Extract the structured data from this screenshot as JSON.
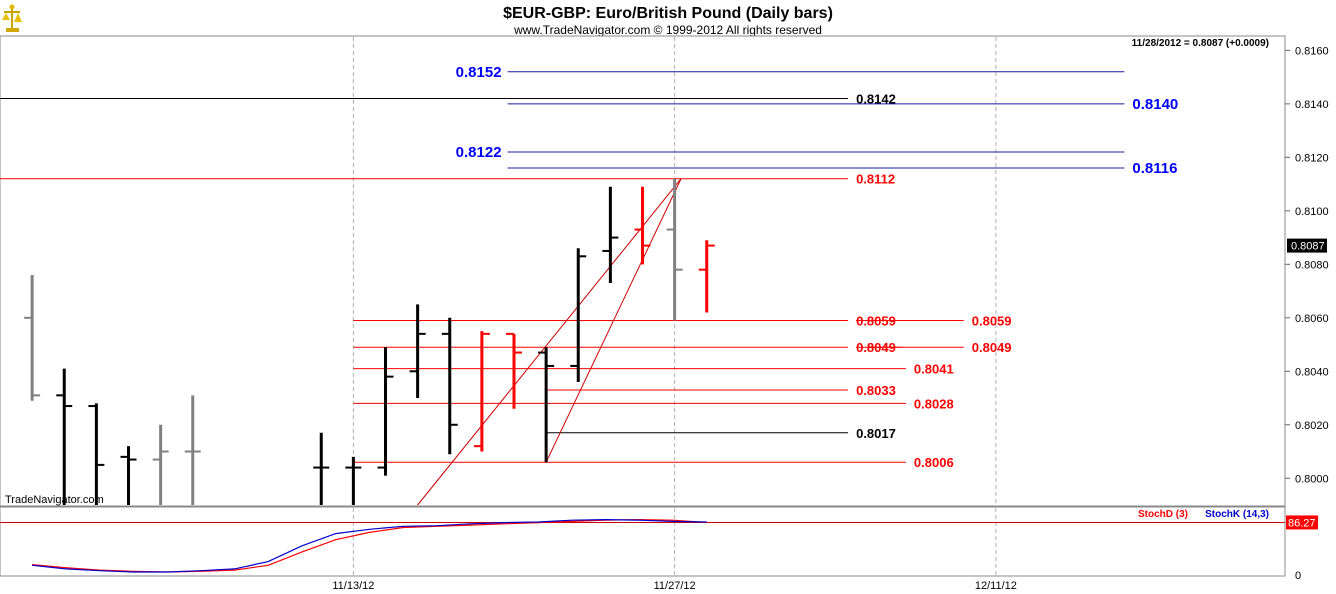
{
  "header": {
    "title": "$EUR-GBP:  Euro/British Pound  (Daily bars)",
    "subtitle": "www.TradeNavigator.com © 1999-2012 All rights reserved",
    "logo_icon": "scales-logo-icon"
  },
  "chart_data": [
    {
      "type": "ohlc",
      "symbol": "$EUR-GBP",
      "watermark": "TradeNavigator.com",
      "readout": "11/28/2012 = 0.8087 (+0.0009)",
      "last_price_label": "0.8087",
      "ylim": [
        0.799,
        0.8165
      ],
      "y_ticks": [
        "0.8160",
        "0.8140",
        "0.8120",
        "0.8100",
        "0.8080",
        "0.8060",
        "0.8040",
        "0.8020",
        "0.8000"
      ],
      "x_ticks": [
        {
          "label": "11/13/12",
          "index": 10
        },
        {
          "label": "11/27/12",
          "index": 20
        },
        {
          "label": "12/11/12",
          "index": 30
        }
      ],
      "x_range": [
        -1,
        39
      ],
      "bars": [
        {
          "i": 0,
          "o": 0.806,
          "h": 0.8076,
          "l": 0.8029,
          "c": 0.8031,
          "color": "#808080"
        },
        {
          "i": 1,
          "o": 0.8031,
          "h": 0.8041,
          "l": 0.799,
          "c": 0.8027,
          "color": "#000000"
        },
        {
          "i": 2,
          "o": 0.8027,
          "h": 0.8028,
          "l": 0.799,
          "c": 0.8005,
          "color": "#000000"
        },
        {
          "i": 3,
          "o": 0.8008,
          "h": 0.8012,
          "l": 0.799,
          "c": 0.8007,
          "color": "#000000"
        },
        {
          "i": 4,
          "o": 0.8007,
          "h": 0.802,
          "l": 0.799,
          "c": 0.801,
          "color": "#808080"
        },
        {
          "i": 5,
          "o": 0.801,
          "h": 0.8031,
          "l": 0.799,
          "c": 0.801,
          "color": "#808080"
        },
        {
          "i": 9,
          "o": 0.8004,
          "h": 0.8017,
          "l": 0.799,
          "c": 0.8004,
          "color": "#000000"
        },
        {
          "i": 10,
          "o": 0.8004,
          "h": 0.8008,
          "l": 0.799,
          "c": 0.8004,
          "color": "#000000"
        },
        {
          "i": 11,
          "o": 0.8004,
          "h": 0.8049,
          "l": 0.8001,
          "c": 0.8038,
          "color": "#000000"
        },
        {
          "i": 12,
          "o": 0.804,
          "h": 0.8065,
          "l": 0.803,
          "c": 0.8054,
          "color": "#000000"
        },
        {
          "i": 13,
          "o": 0.8054,
          "h": 0.806,
          "l": 0.8009,
          "c": 0.802,
          "color": "#000000"
        },
        {
          "i": 14,
          "o": 0.8012,
          "h": 0.8055,
          "l": 0.801,
          "c": 0.8054,
          "color": "#ff0000"
        },
        {
          "i": 15,
          "o": 0.8054,
          "h": 0.8054,
          "l": 0.8026,
          "c": 0.8047,
          "color": "#ff0000"
        },
        {
          "i": 16,
          "o": 0.8047,
          "h": 0.8049,
          "l": 0.8006,
          "c": 0.8042,
          "color": "#000000"
        },
        {
          "i": 17,
          "o": 0.8042,
          "h": 0.8086,
          "l": 0.8036,
          "c": 0.8083,
          "color": "#000000"
        },
        {
          "i": 18,
          "o": 0.8085,
          "h": 0.8109,
          "l": 0.8073,
          "c": 0.809,
          "color": "#000000"
        },
        {
          "i": 19,
          "o": 0.8093,
          "h": 0.8109,
          "l": 0.808,
          "c": 0.8087,
          "color": "#ff0000"
        },
        {
          "i": 20,
          "o": 0.8093,
          "h": 0.8112,
          "l": 0.8059,
          "c": 0.8078,
          "color": "#808080"
        },
        {
          "i": 21,
          "o": 0.8078,
          "h": 0.8089,
          "l": 0.8062,
          "c": 0.8087,
          "color": "#ff0000"
        }
      ],
      "horizontal_levels": [
        {
          "value": 0.8152,
          "from": 14.8,
          "to": 34,
          "color": "#1a1aa6",
          "label": "0.8152",
          "label_side": "left",
          "label_color": "#0000ff",
          "bold": true
        },
        {
          "value": 0.8142,
          "from": -1,
          "to": 25.4,
          "color": "#000000",
          "label": "0.8142",
          "label_side": "right",
          "label_color": "#000000",
          "bold": false
        },
        {
          "value": 0.814,
          "from": 14.8,
          "to": 34,
          "color": "#1a1aa6",
          "label": "0.8140",
          "label_side": "right",
          "label_color": "#0000ff",
          "bold": true
        },
        {
          "value": 0.8122,
          "from": 14.8,
          "to": 34,
          "color": "#1a1aa6",
          "label": "0.8122",
          "label_side": "left",
          "label_color": "#0000ff",
          "bold": true
        },
        {
          "value": 0.8116,
          "from": 14.8,
          "to": 34,
          "color": "#1a1aa6",
          "label": "0.8116",
          "label_side": "right",
          "label_color": "#0000ff",
          "bold": true
        },
        {
          "value": 0.8112,
          "from": -1,
          "to": 25.4,
          "color": "#ff0000",
          "label": "0.8112",
          "label_side": "right",
          "label_color": "#ff0000",
          "bold": false
        },
        {
          "value": 0.8059,
          "from": 10,
          "to": 25.4,
          "color": "#ff0000",
          "label": "0.8059",
          "label_side": "right",
          "label_color": "#ff0000",
          "bold": false,
          "struck": true
        },
        {
          "value": 0.8059,
          "from": 26.0,
          "to": 29,
          "color": "#ff0000",
          "label": "0.8059",
          "label_side": "right",
          "label_color": "#ff0000",
          "bold": false
        },
        {
          "value": 0.8049,
          "from": 10,
          "to": 25.4,
          "color": "#ff0000",
          "label": "0.8049",
          "label_side": "right",
          "label_color": "#ff0000",
          "bold": false,
          "struck": true
        },
        {
          "value": 0.8049,
          "from": 26.0,
          "to": 29,
          "color": "#ff0000",
          "label": "0.8049",
          "label_side": "right",
          "label_color": "#ff0000",
          "bold": false
        },
        {
          "value": 0.8041,
          "from": 10,
          "to": 27.2,
          "color": "#ff0000",
          "label": "0.8041",
          "label_side": "right",
          "label_color": "#ff0000",
          "bold": false
        },
        {
          "value": 0.8033,
          "from": 16,
          "to": 25.4,
          "color": "#ff0000",
          "label": "0.8033",
          "label_side": "right",
          "label_color": "#ff0000",
          "bold": false
        },
        {
          "value": 0.8028,
          "from": 10,
          "to": 27.2,
          "color": "#ff0000",
          "label": "0.8028",
          "label_side": "right",
          "label_color": "#ff0000",
          "bold": false
        },
        {
          "value": 0.8017,
          "from": 16,
          "to": 25.4,
          "color": "#000000",
          "label": "0.8017",
          "label_side": "right",
          "label_color": "#000000",
          "bold": false
        },
        {
          "value": 0.8006,
          "from": 10,
          "to": 27.2,
          "color": "#ff0000",
          "label": "0.8006",
          "label_side": "right",
          "label_color": "#ff0000",
          "bold": false
        }
      ],
      "trendlines": [
        {
          "x1": 12.0,
          "y1": 0.799,
          "x2": 20.2,
          "y2": 0.8112,
          "color": "#cc0000"
        },
        {
          "x1": 16.0,
          "y1": 0.8006,
          "x2": 20.2,
          "y2": 0.8112,
          "color": "#cc0000"
        }
      ]
    },
    {
      "type": "line",
      "indicator": "stochastic",
      "ylim": [
        0,
        110
      ],
      "y_ticks": [
        "0"
      ],
      "last_value_label": "86.27",
      "reference_level": 86.27,
      "legend": [
        "StochD (3)",
        "StochK (14,3)"
      ],
      "series": [
        {
          "name": "StochD (3)",
          "color": "#ff0000",
          "values": [
            17,
            12,
            8,
            6,
            5,
            6,
            8,
            16,
            38,
            58,
            70,
            78,
            80,
            82,
            84,
            86,
            88,
            90,
            91,
            90,
            86.27
          ],
          "x_start": 0
        },
        {
          "name": "StochK (14,3)",
          "color": "#0000cc",
          "values": [
            16,
            10,
            7,
            5,
            5,
            7,
            10,
            22,
            48,
            68,
            75,
            80,
            81,
            84,
            86,
            87,
            90,
            91,
            90,
            88,
            87
          ],
          "x_start": 0
        }
      ]
    }
  ]
}
